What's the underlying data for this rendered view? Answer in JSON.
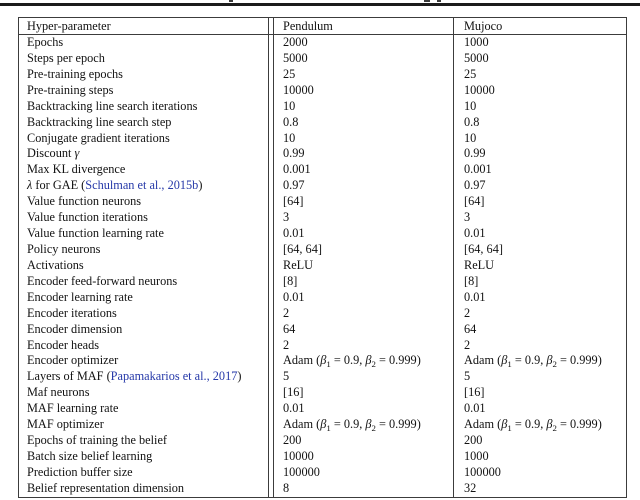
{
  "colors": {
    "citation": "#2538a8",
    "border": "#3c3c3c",
    "text": "#121212",
    "rule": "#1b1b1b"
  },
  "table": {
    "headers": [
      "Hyper-parameter",
      "Pendulum",
      "Mujoco"
    ],
    "rows": [
      {
        "param": "Epochs",
        "pendulum": "2000",
        "mujoco": "1000"
      },
      {
        "param": "Steps per epoch",
        "pendulum": "5000",
        "mujoco": "5000"
      },
      {
        "param": "Pre-training epochs",
        "pendulum": "25",
        "mujoco": "25"
      },
      {
        "param": "Pre-training steps",
        "pendulum": "10000",
        "mujoco": "10000"
      },
      {
        "param": "Backtracking line search iterations",
        "pendulum": "10",
        "mujoco": "10"
      },
      {
        "param": "Backtracking line search step",
        "pendulum": "0.8",
        "mujoco": "0.8"
      },
      {
        "param": "Conjugate gradient iterations",
        "pendulum": "10",
        "mujoco": "10"
      },
      {
        "param": [
          {
            "t": "Discount "
          },
          {
            "t": "γ",
            "s": "i"
          }
        ],
        "pendulum": "0.99",
        "mujoco": "0.99"
      },
      {
        "param": "Max KL divergence",
        "pendulum": "0.001",
        "mujoco": "0.001"
      },
      {
        "param": [
          {
            "t": "λ",
            "s": "i"
          },
          {
            "t": " for GAE ("
          },
          {
            "t": "Schulman et al., 2015b",
            "s": "c"
          },
          {
            "t": ")"
          }
        ],
        "pendulum": "0.97",
        "mujoco": "0.97"
      },
      {
        "param": "Value function neurons",
        "pendulum": "[64]",
        "mujoco": "[64]"
      },
      {
        "param": "Value function iterations",
        "pendulum": "3",
        "mujoco": "3"
      },
      {
        "param": "Value function learning rate",
        "pendulum": "0.01",
        "mujoco": "0.01"
      },
      {
        "param": "Policy neurons",
        "pendulum": "[64, 64]",
        "mujoco": "[64, 64]"
      },
      {
        "param": "Activations",
        "pendulum": "ReLU",
        "mujoco": "ReLU"
      },
      {
        "param": "Encoder feed-forward neurons",
        "pendulum": "[8]",
        "mujoco": "[8]"
      },
      {
        "param": "Encoder learning rate",
        "pendulum": "0.01",
        "mujoco": "0.01"
      },
      {
        "param": "Encoder iterations",
        "pendulum": "2",
        "mujoco": "2"
      },
      {
        "param": "Encoder dimension",
        "pendulum": "64",
        "mujoco": "64"
      },
      {
        "param": "Encoder heads",
        "pendulum": "2",
        "mujoco": "2"
      },
      {
        "param": "Encoder optimizer",
        "pendulum": [
          {
            "t": "Adam ("
          },
          {
            "t": "β",
            "s": "i"
          },
          {
            "t": "1",
            "s": "sub"
          },
          {
            "t": " = 0.9, "
          },
          {
            "t": "β",
            "s": "i"
          },
          {
            "t": "2",
            "s": "sub"
          },
          {
            "t": " = 0.999)"
          }
        ],
        "mujoco": [
          {
            "t": "Adam ("
          },
          {
            "t": "β",
            "s": "i"
          },
          {
            "t": "1",
            "s": "sub"
          },
          {
            "t": " = 0.9, "
          },
          {
            "t": "β",
            "s": "i"
          },
          {
            "t": "2",
            "s": "sub"
          },
          {
            "t": " = 0.999)"
          }
        ]
      },
      {
        "param": [
          {
            "t": "Layers of MAF ("
          },
          {
            "t": "Papamakarios et al., 2017",
            "s": "c"
          },
          {
            "t": ")"
          }
        ],
        "pendulum": "5",
        "mujoco": "5"
      },
      {
        "param": "Maf neurons",
        "pendulum": "[16]",
        "mujoco": "[16]"
      },
      {
        "param": "MAF learning rate",
        "pendulum": "0.01",
        "mujoco": "0.01"
      },
      {
        "param": "MAF optimizer",
        "pendulum": [
          {
            "t": "Adam ("
          },
          {
            "t": "β",
            "s": "i"
          },
          {
            "t": "1",
            "s": "sub"
          },
          {
            "t": " = 0.9, "
          },
          {
            "t": "β",
            "s": "i"
          },
          {
            "t": "2",
            "s": "sub"
          },
          {
            "t": " = 0.999)"
          }
        ],
        "mujoco": [
          {
            "t": "Adam ("
          },
          {
            "t": "β",
            "s": "i"
          },
          {
            "t": "1",
            "s": "sub"
          },
          {
            "t": " = 0.9, "
          },
          {
            "t": "β",
            "s": "i"
          },
          {
            "t": "2",
            "s": "sub"
          },
          {
            "t": " = 0.999)"
          }
        ]
      },
      {
        "param": "Epochs of training the belief",
        "pendulum": "200",
        "mujoco": "200"
      },
      {
        "param": "Batch size belief learning",
        "pendulum": "10000",
        "mujoco": "1000"
      },
      {
        "param": "Prediction buffer size",
        "pendulum": "100000",
        "mujoco": "100000"
      },
      {
        "param": "Belief representation dimension",
        "pendulum": "8",
        "mujoco": "32"
      }
    ]
  }
}
